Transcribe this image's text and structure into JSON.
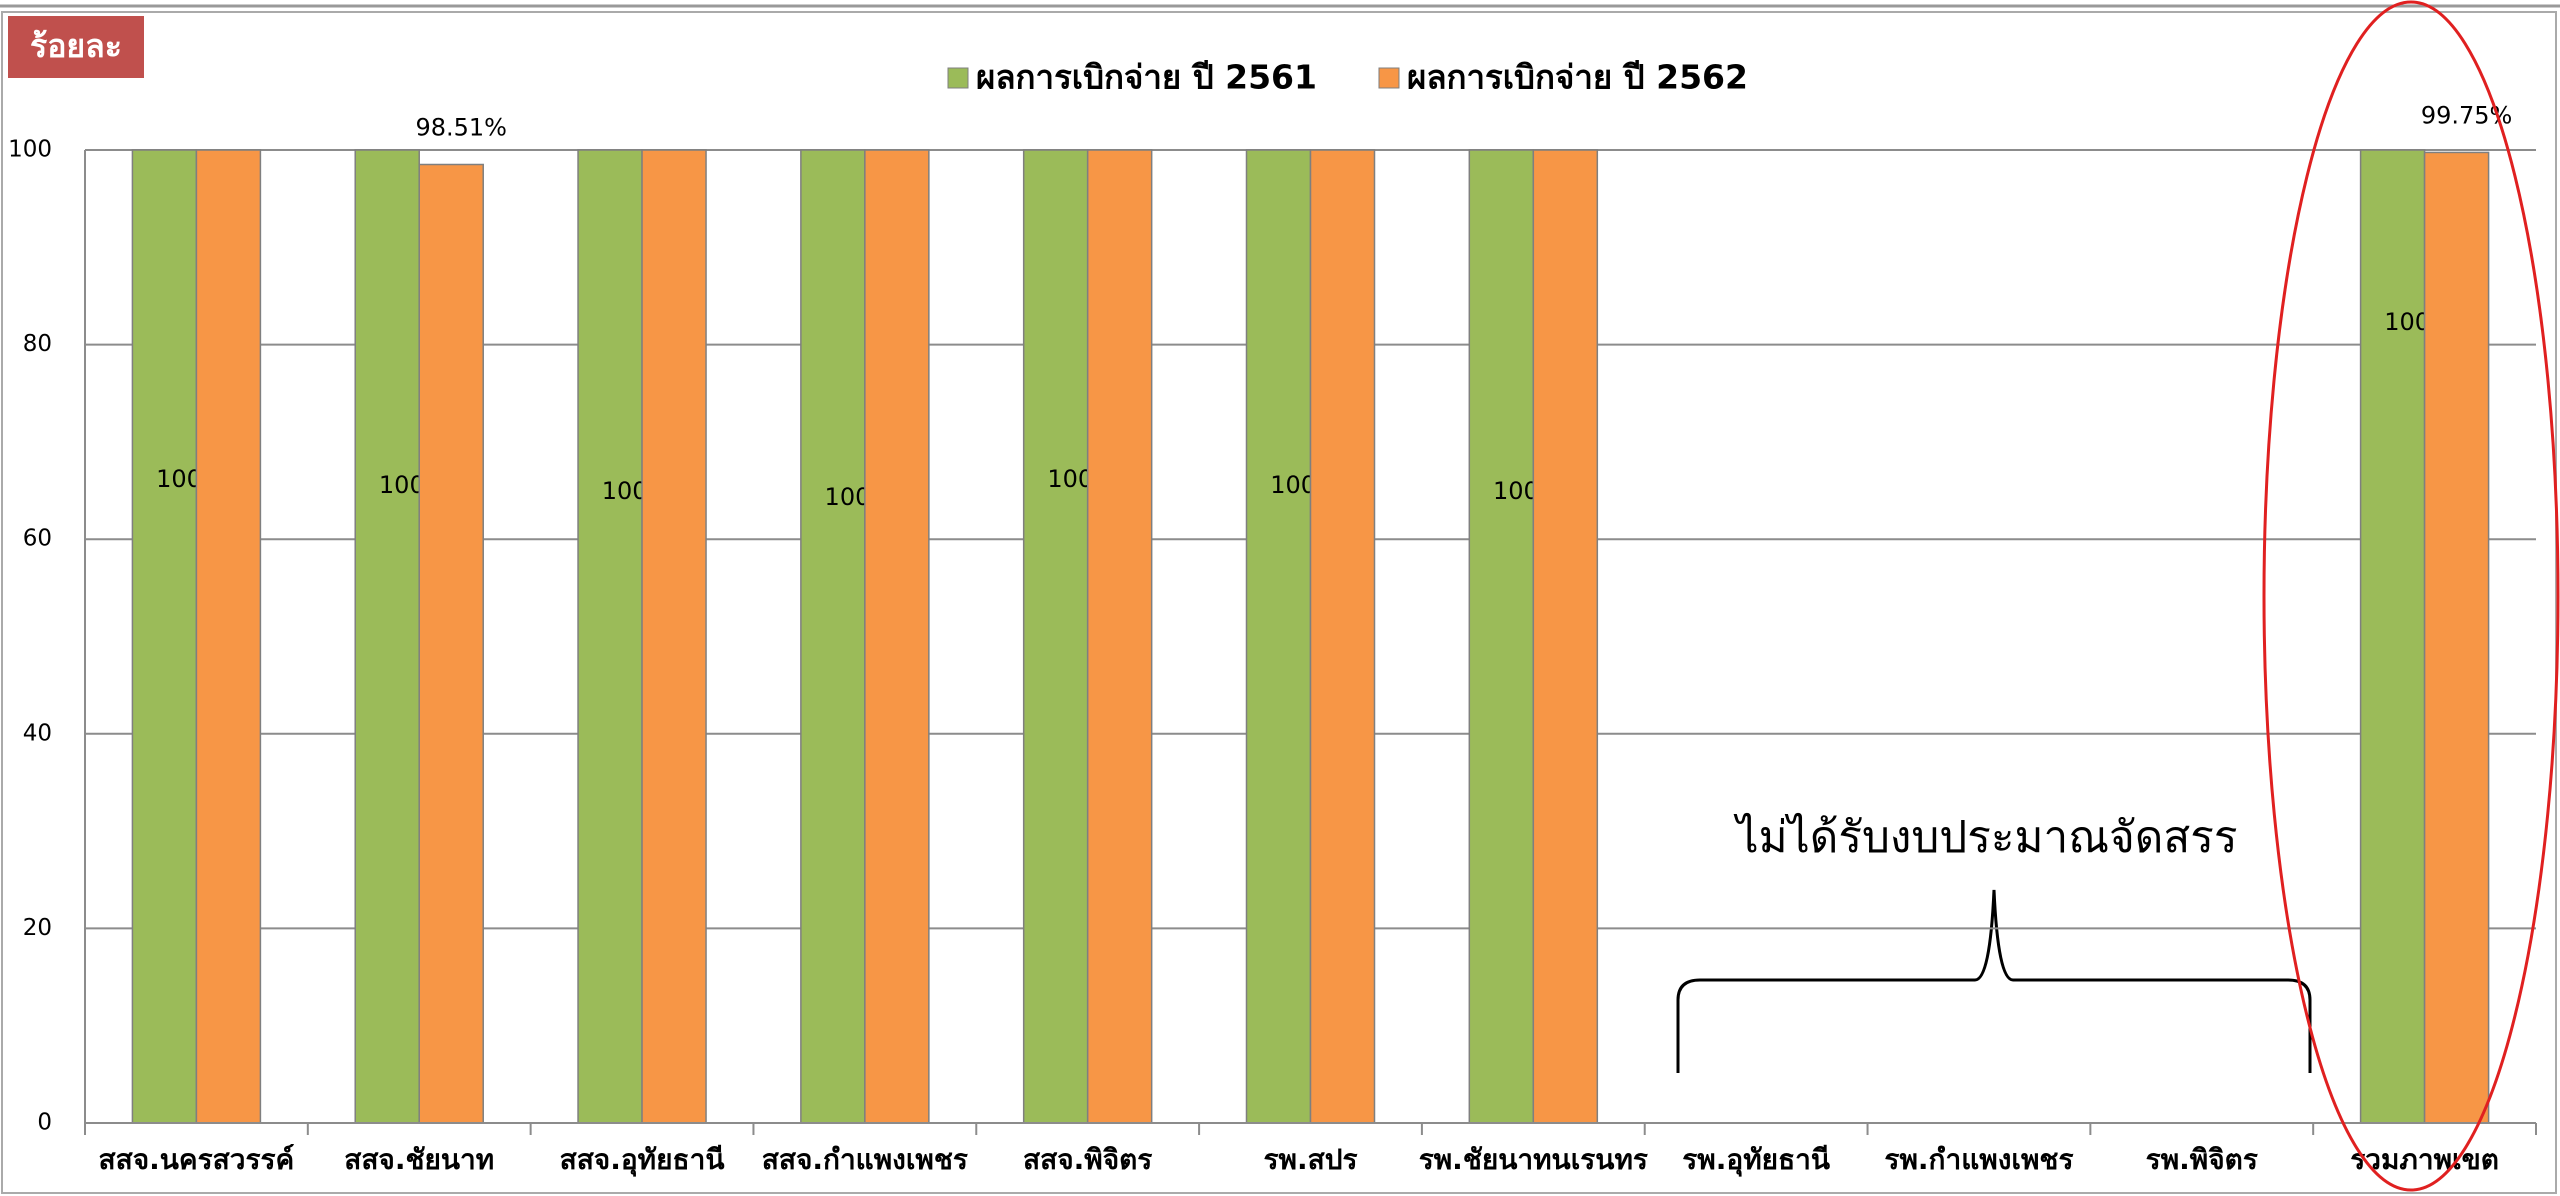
{
  "chart_data": {
    "type": "bar",
    "badge": "ร้อยละ",
    "annotation": "ไม่ได้รับงบประมาณจัดสรร",
    "categories": [
      "สสจ.นครสวรรค์",
      "สสจ.ชัยนาท",
      "สสจ.อุทัยธานี",
      "สสจ.กำแพงเพชร",
      "สสจ.พิจิตร",
      "รพ.สปร",
      "รพ.ชัยนาทนเรนทร",
      "รพ.อุทัยธานี",
      "รพ.กำแพงเพชร",
      "รพ.พิจิตร",
      "รวมภาพเขต"
    ],
    "series": [
      {
        "name": "ผลการเบิกจ่าย ปี 2561",
        "color": "#9bbb59",
        "values": [
          100,
          100,
          100,
          100,
          100,
          100,
          100,
          null,
          null,
          null,
          100
        ],
        "value_labels": [
          "100%",
          "100%",
          "100%",
          "100%",
          "100%",
          "100%",
          "100%",
          null,
          null,
          null,
          "100%"
        ]
      },
      {
        "name": "ผลการเบิกจ่าย ปี 2562",
        "color": "#f79646",
        "values": [
          100,
          98.51,
          100,
          100,
          100,
          100,
          100,
          null,
          null,
          null,
          99.75
        ],
        "value_labels": [
          null,
          "98.51%",
          null,
          null,
          null,
          null,
          null,
          null,
          null,
          null,
          "99.75%"
        ]
      }
    ],
    "ylim": [
      0,
      100
    ],
    "yticks": [
      0,
      20,
      40,
      60,
      80,
      100
    ],
    "grid": true,
    "legend": "top"
  }
}
